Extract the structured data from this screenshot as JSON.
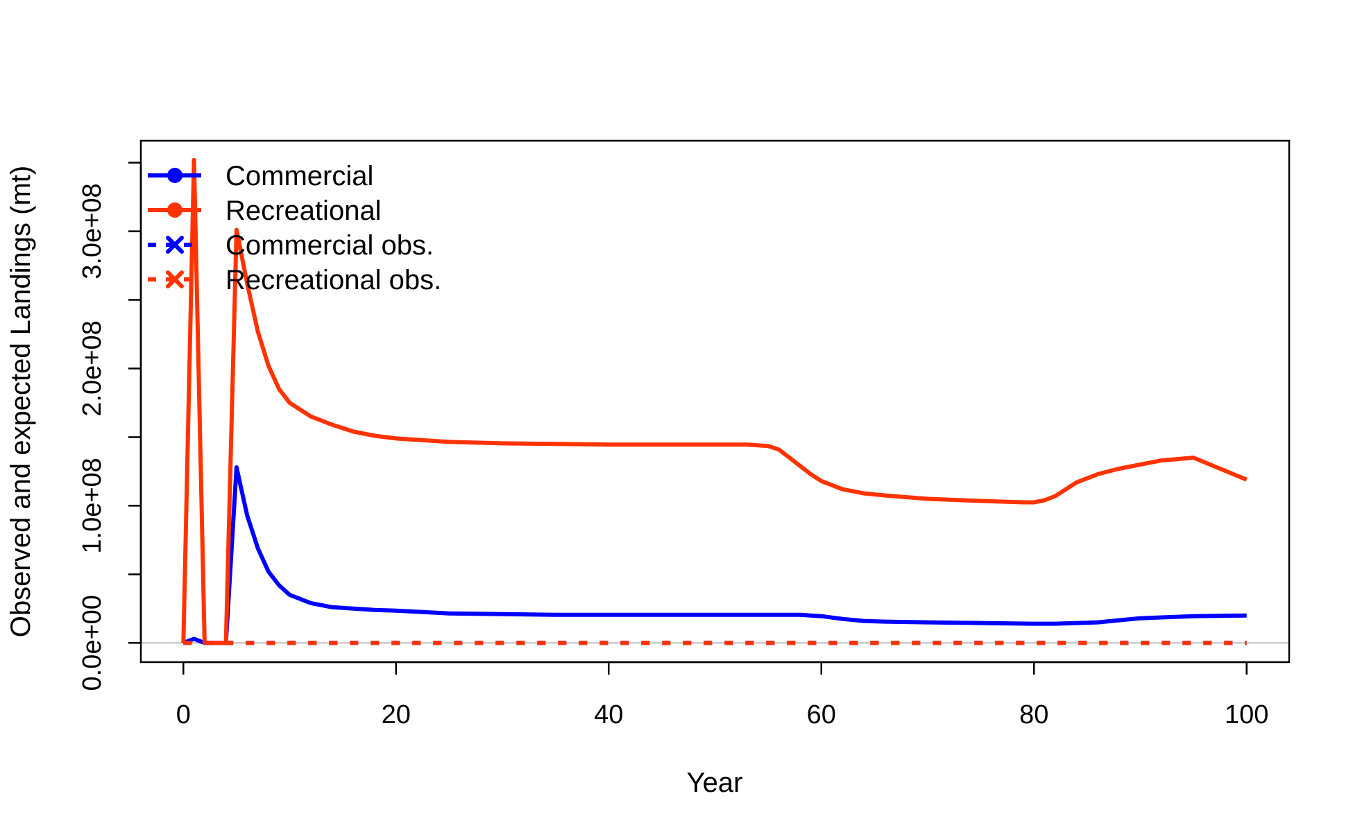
{
  "chart_data": {
    "type": "line",
    "title": "",
    "xlabel": "Year",
    "ylabel": "Observed and expected Landings (mt)",
    "xlim": [
      -4,
      104
    ],
    "ylim": [
      -14000000,
      366000000
    ],
    "x_ticks": [
      0,
      20,
      40,
      60,
      80,
      100
    ],
    "x_tick_labels": [
      "0",
      "20",
      "40",
      "60",
      "80",
      "100"
    ],
    "y_ticks": [
      0,
      50000000,
      100000000,
      150000000,
      200000000,
      250000000,
      300000000,
      350000000
    ],
    "y_tick_labels": [
      "0.0e+00",
      "",
      "1.0e+08",
      "",
      "2.0e+08",
      "",
      "3.0e+08",
      ""
    ],
    "grid": false,
    "reference_line": {
      "y": 0,
      "color": "#bebebe"
    },
    "legend": {
      "placement": "top-left",
      "entries": [
        {
          "label": "Commercial",
          "color": "#0000ff",
          "style": "solid",
          "marker": "circle"
        },
        {
          "label": "Recreational",
          "color": "#ff3300",
          "style": "solid",
          "marker": "circle"
        },
        {
          "label": "Commercial obs.",
          "color": "#0000ff",
          "style": "dashed",
          "marker": "x"
        },
        {
          "label": "Recreational obs.",
          "color": "#ff3300",
          "style": "dashed",
          "marker": "x"
        }
      ]
    },
    "series": [
      {
        "name": "Commercial",
        "color": "#0000ff",
        "style": "solid",
        "x": [
          0,
          1,
          2,
          3,
          4,
          5,
          6,
          7,
          8,
          9,
          10,
          12,
          14,
          16,
          18,
          20,
          25,
          30,
          35,
          40,
          45,
          50,
          55,
          58,
          60,
          62,
          64,
          66,
          70,
          75,
          80,
          82,
          84,
          86,
          88,
          90,
          95,
          100
        ],
        "y": [
          0,
          3000000,
          0,
          0,
          0,
          128000000,
          93000000,
          69000000,
          52000000,
          42000000,
          35000000,
          29000000,
          26000000,
          25000000,
          24000000,
          23500000,
          21500000,
          21000000,
          20500000,
          20500000,
          20500000,
          20500000,
          20500000,
          20500000,
          19500000,
          17500000,
          16000000,
          15500000,
          15000000,
          14500000,
          14000000,
          14000000,
          14500000,
          15000000,
          16500000,
          18000000,
          19500000,
          20000000
        ]
      },
      {
        "name": "Recreational",
        "color": "#ff3300",
        "style": "solid",
        "x": [
          0,
          1,
          2,
          3,
          4,
          5,
          6,
          7,
          8,
          9,
          10,
          12,
          14,
          16,
          18,
          20,
          25,
          30,
          35,
          40,
          45,
          50,
          53,
          55,
          56,
          57,
          58,
          59,
          60,
          62,
          64,
          66,
          70,
          75,
          79,
          80,
          81,
          82,
          83,
          84,
          86,
          88,
          90,
          92,
          95,
          100
        ],
        "y": [
          0,
          352000000,
          0,
          0,
          0,
          301000000,
          262000000,
          227000000,
          202000000,
          185000000,
          175000000,
          165000000,
          159000000,
          154000000,
          151000000,
          149000000,
          146500000,
          145500000,
          145000000,
          144500000,
          144500000,
          144500000,
          144500000,
          143500000,
          141000000,
          135000000,
          129000000,
          123000000,
          118000000,
          112000000,
          109000000,
          107500000,
          105000000,
          103500000,
          102500000,
          102500000,
          104000000,
          107000000,
          112000000,
          117000000,
          123000000,
          127000000,
          130000000,
          133000000,
          135000000,
          119000000
        ]
      },
      {
        "name": "Commercial obs.",
        "color": "#0000ff",
        "style": "dashed",
        "x": [
          0,
          100
        ],
        "y": [
          0,
          0
        ]
      },
      {
        "name": "Recreational obs.",
        "color": "#ff3300",
        "style": "dashed",
        "x": [
          0,
          100
        ],
        "y": [
          0,
          0
        ]
      }
    ]
  }
}
